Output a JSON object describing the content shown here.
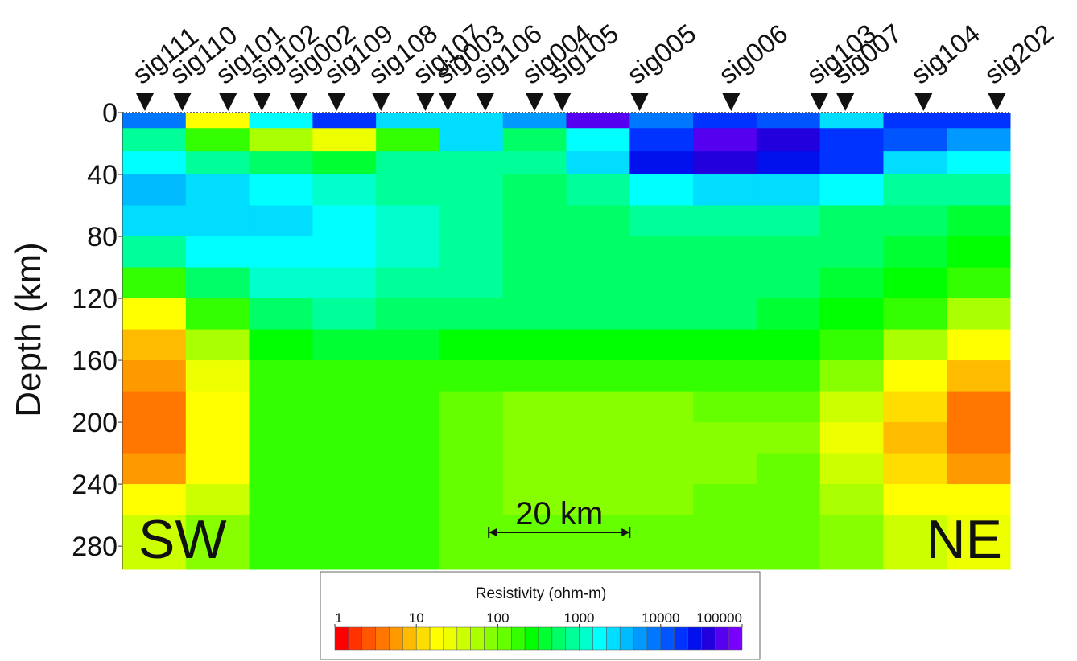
{
  "chart_data": {
    "type": "section",
    "ylabel": "Depth (km)",
    "ylim": [
      0,
      295
    ],
    "yticks": [
      0,
      40,
      80,
      120,
      160,
      200,
      240,
      280
    ],
    "xlim": [
      0,
      126
    ],
    "left_label": "SW",
    "right_label": "NE",
    "stations": [
      {
        "name": "sig111",
        "distance": 3.2
      },
      {
        "name": "sig110",
        "distance": 8.5
      },
      {
        "name": "sig101",
        "distance": 15.0
      },
      {
        "name": "sig102",
        "distance": 19.8
      },
      {
        "name": "sig002",
        "distance": 25.0
      },
      {
        "name": "sig109",
        "distance": 30.4
      },
      {
        "name": "sig108",
        "distance": 36.7
      },
      {
        "name": "sig107",
        "distance": 43.0
      },
      {
        "name": "sig003",
        "distance": 46.2
      },
      {
        "name": "sig106",
        "distance": 51.5
      },
      {
        "name": "sig004",
        "distance": 58.5
      },
      {
        "name": "sig105",
        "distance": 62.4
      },
      {
        "name": "sig005",
        "distance": 73.4
      },
      {
        "name": "sig006",
        "distance": 86.4
      },
      {
        "name": "sig103",
        "distance": 98.9
      },
      {
        "name": "sig007",
        "distance": 102.6
      },
      {
        "name": "sig104",
        "distance": 113.7
      },
      {
        "name": "sig202",
        "distance": 124.1
      }
    ],
    "scale_bar": {
      "label": "20 km",
      "start": 52,
      "length": 20
    },
    "grid": {
      "distance_edges": [
        0,
        9,
        18,
        27,
        36,
        45,
        54,
        63,
        72,
        81,
        90,
        99,
        108,
        117,
        126
      ],
      "depth_edges": [
        0,
        10,
        25,
        40,
        60,
        80,
        100,
        120,
        140,
        160,
        180,
        200,
        220,
        240,
        260,
        295
      ],
      "values": [
        [
          8000,
          20,
          2000,
          15000,
          3000,
          3000,
          5000,
          60000,
          8000,
          15000,
          10000,
          3000,
          20000,
          15000
        ],
        [
          800,
          150,
          60,
          30,
          200,
          3000,
          600,
          2000,
          20000,
          50000,
          40000,
          20000,
          10000,
          5000
        ],
        [
          2000,
          700,
          500,
          400,
          700,
          800,
          800,
          3000,
          30000,
          40000,
          30000,
          20000,
          3000,
          1500
        ],
        [
          4000,
          3000,
          1500,
          1000,
          800,
          700,
          600,
          800,
          2000,
          3000,
          3000,
          1500,
          800,
          700
        ],
        [
          3000,
          3000,
          2500,
          1500,
          1000,
          700,
          600,
          600,
          700,
          700,
          700,
          600,
          500,
          400
        ],
        [
          800,
          1500,
          2000,
          1500,
          1000,
          700,
          600,
          600,
          600,
          600,
          600,
          500,
          400,
          300
        ],
        [
          200,
          600,
          1000,
          1000,
          800,
          700,
          600,
          600,
          600,
          600,
          500,
          400,
          300,
          200
        ],
        [
          20,
          200,
          500,
          800,
          600,
          500,
          500,
          500,
          500,
          500,
          400,
          300,
          150,
          60
        ],
        [
          8,
          60,
          300,
          400,
          400,
          300,
          300,
          300,
          300,
          300,
          300,
          200,
          60,
          20
        ],
        [
          5,
          30,
          200,
          200,
          200,
          150,
          150,
          150,
          150,
          150,
          150,
          80,
          20,
          8
        ],
        [
          4,
          20,
          150,
          150,
          150,
          100,
          80,
          80,
          80,
          100,
          100,
          40,
          10,
          4
        ],
        [
          4,
          15,
          150,
          150,
          150,
          100,
          70,
          70,
          70,
          80,
          90,
          30,
          8,
          4
        ],
        [
          6,
          20,
          150,
          150,
          150,
          100,
          70,
          70,
          70,
          80,
          100,
          40,
          10,
          6
        ],
        [
          15,
          40,
          150,
          150,
          150,
          100,
          80,
          80,
          80,
          100,
          100,
          60,
          20,
          15
        ],
        [
          40,
          80,
          150,
          200,
          150,
          120,
          100,
          100,
          100,
          120,
          120,
          80,
          40,
          30
        ]
      ]
    },
    "colorbar": {
      "title": "Resistivity (ohm-m)",
      "lim": [
        1,
        100000
      ],
      "log": true,
      "ticks": [
        1,
        10,
        100,
        1000,
        10000,
        100000
      ],
      "palette": [
        "#ff0000",
        "#ff3300",
        "#ff5500",
        "#ff7700",
        "#ff9900",
        "#ffbb00",
        "#ffdd00",
        "#ffff00",
        "#eeff00",
        "#ccff00",
        "#aaff00",
        "#88ff00",
        "#66ff00",
        "#33ff00",
        "#00ff00",
        "#00ff33",
        "#00ff66",
        "#00ff99",
        "#00ffcc",
        "#00ffff",
        "#00ddff",
        "#00bbff",
        "#0099ff",
        "#0077ff",
        "#0055ff",
        "#0033ff",
        "#0011ee",
        "#2200dd",
        "#5500ee",
        "#7700ff"
      ]
    }
  }
}
